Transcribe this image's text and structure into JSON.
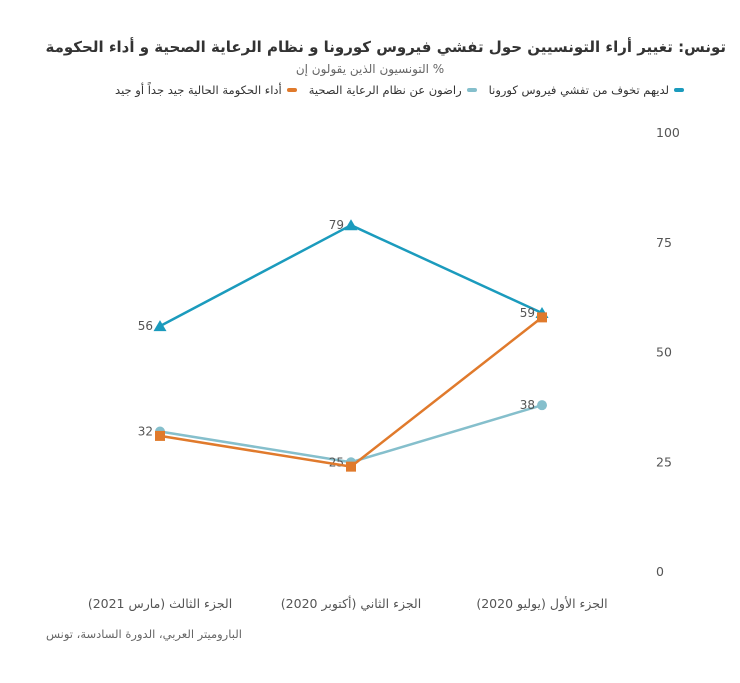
{
  "chart_data": {
    "type": "line",
    "title": "تونس: تغيير أراء التونسيين حول تفشي فيروس كورونا و نظام الرعاية الصحية و أداء الحكومة",
    "subtitle": "% التونسيون الذين يقولون إن",
    "source": "الباروميتر العربي، الدورة السادسة، تونس",
    "categories": [
      "الجزء الثالث (مارس 2021)",
      "الجزء الثاني (أكتوبر 2020)",
      "الجزء الأول (يوليو 2020)"
    ],
    "ylim": [
      0,
      100
    ],
    "yticks": [
      "0",
      "25",
      "50",
      "75",
      "100"
    ],
    "legend_position": "top",
    "series": [
      {
        "name": "لديهم تخوف من تفشي فيروس كورونا",
        "color": "#1b9bbd",
        "marker": "triangle",
        "values": [
          56,
          79,
          59
        ],
        "labels": [
          "56",
          "79",
          "59"
        ]
      },
      {
        "name": "راضون عن نظام الرعاية الصحية",
        "color": "#85bfcc",
        "marker": "circle",
        "values": [
          32,
          25,
          38
        ],
        "labels": [
          "32",
          "25",
          "38"
        ]
      },
      {
        "name": "أداء الحكومة الحالية جيد جداً أو جيد",
        "color": "#e07a2c",
        "marker": "square",
        "values": [
          31,
          24,
          58
        ],
        "labels": [
          "",
          "",
          ""
        ]
      }
    ]
  }
}
